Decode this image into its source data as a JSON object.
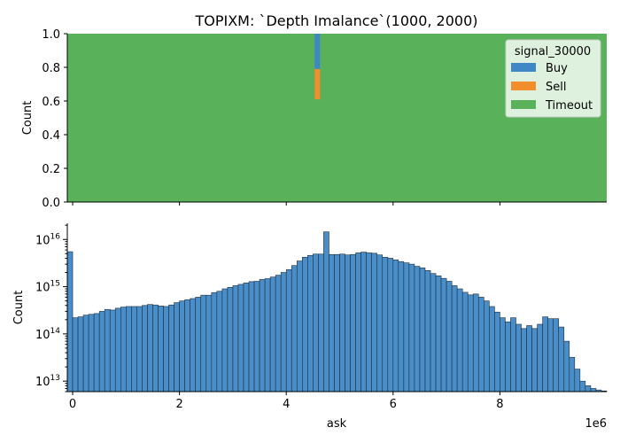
{
  "chart_data": [
    {
      "type": "bar",
      "title": "TOPIXM: `Depth Imalance`(1000, 2000)",
      "ylabel": "Count",
      "ylim": [
        0,
        1
      ],
      "xlim": [
        -100000,
        10000000
      ],
      "yticks": [
        "0.0",
        "0.2",
        "0.4",
        "0.6",
        "0.8",
        "1.0"
      ],
      "stacked_fraction": true,
      "legend": {
        "title": "signal_30000",
        "placement": "top-right",
        "entries": [
          {
            "label": "Buy",
            "color": "#3f88c5"
          },
          {
            "label": "Sell",
            "color": "#f28e2b"
          },
          {
            "label": "Timeout",
            "color": "#59b259"
          }
        ]
      },
      "background_series": {
        "name": "Timeout",
        "value": 1.0,
        "color": "#59b259"
      },
      "spike": {
        "x": 4580000,
        "segments": [
          {
            "name": "Buy",
            "from": 0.79,
            "to": 1.0,
            "color": "#3f88c5"
          },
          {
            "name": "Sell",
            "from": 0.61,
            "to": 0.79,
            "color": "#f28e2b"
          }
        ]
      }
    },
    {
      "type": "bar",
      "xlabel": "ask",
      "ylabel": "Count",
      "yscale": "log",
      "ylim": [
        6000000000000,
        22000000000000000
      ],
      "xlim": [
        -100000,
        10000000
      ],
      "xticks": [
        "0",
        "2",
        "4",
        "6",
        "8"
      ],
      "x_offset_label": "1e6",
      "bin_width": 100000,
      "bin_start": -100000,
      "color": "#3f88c5",
      "values": [
        5500000000000000.0,
        220000000000000.0,
        230000000000000.0,
        250000000000000.0,
        260000000000000.0,
        270000000000000.0,
        300000000000000.0,
        330000000000000.0,
        320000000000000.0,
        350000000000000.0,
        370000000000000.0,
        380000000000000.0,
        380000000000000.0,
        380000000000000.0,
        400000000000000.0,
        420000000000000.0,
        410000000000000.0,
        390000000000000.0,
        380000000000000.0,
        410000000000000.0,
        460000000000000.0,
        500000000000000.0,
        530000000000000.0,
        560000000000000.0,
        600000000000000.0,
        660000000000000.0,
        660000000000000.0,
        750000000000000.0,
        800000000000000.0,
        900000000000000.0,
        970000000000000.0,
        1050000000000000.0,
        1120000000000000.0,
        1200000000000000.0,
        1280000000000000.0,
        1300000000000000.0,
        1420000000000000.0,
        1480000000000000.0,
        1600000000000000.0,
        1750000000000000.0,
        2000000000000000.0,
        2300000000000000.0,
        2800000000000000.0,
        3500000000000000.0,
        4200000000000000.0,
        4600000000000000.0,
        4900000000000000.0,
        4900000000000000.0,
        1.45e+16,
        4800000000000000.0,
        4800000000000000.0,
        4900000000000000.0,
        4700000000000000.0,
        4800000000000000.0,
        5200000000000000.0,
        5400000000000000.0,
        5200000000000000.0,
        5100000000000000.0,
        4700000000000000.0,
        4200000000000000.0,
        4000000000000000.0,
        3700000000000000.0,
        3400000000000000.0,
        3200000000000000.0,
        3000000000000000.0,
        2700000000000000.0,
        2500000000000000.0,
        2200000000000000.0,
        1900000000000000.0,
        1700000000000000.0,
        1500000000000000.0,
        1300000000000000.0,
        1050000000000000.0,
        900000000000000.0,
        760000000000000.0,
        670000000000000.0,
        700000000000000.0,
        600000000000000.0,
        500000000000000.0,
        380000000000000.0,
        290000000000000.0,
        220000000000000.0,
        180000000000000.0,
        220000000000000.0,
        160000000000000.0,
        130000000000000.0,
        150000000000000.0,
        130000000000000.0,
        160000000000000.0,
        230000000000000.0,
        210000000000000.0,
        210000000000000.0,
        140000000000000.0,
        70000000000000.0,
        32000000000000.0,
        18000000000000.0,
        10000000000000.0,
        8000000000000.0,
        7000000000000.0,
        6500000000000.0,
        6200000000000.0
      ]
    }
  ]
}
